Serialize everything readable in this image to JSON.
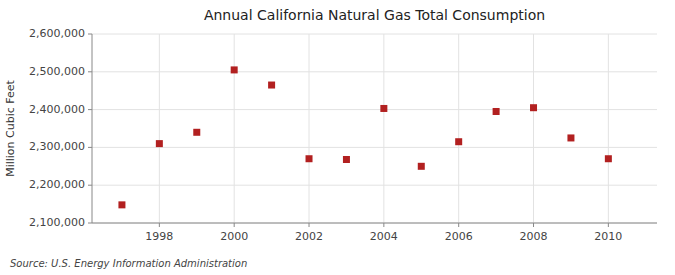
{
  "chart_data": {
    "type": "scatter",
    "title": "Annual California Natural Gas Total Consumption",
    "ylabel": "Million Cubic Feet",
    "annotations": [
      "Source: U.S. Energy Information Administration"
    ],
    "x": [
      1997,
      1998,
      1999,
      2000,
      2001,
      2002,
      2003,
      2004,
      2005,
      2006,
      2007,
      2008,
      2009,
      2010
    ],
    "values": [
      2148000,
      2310000,
      2340000,
      2505000,
      2465000,
      2270000,
      2268000,
      2403000,
      2250000,
      2315000,
      2395000,
      2405000,
      2325000,
      2270000
    ],
    "color": "#b22020",
    "marker": "square",
    "xlim": [
      1996.2,
      2011.3
    ],
    "xticks": [
      1998,
      2000,
      2002,
      2004,
      2006,
      2008,
      2010
    ],
    "ylim": [
      2100000,
      2600000
    ],
    "yticks": [
      {
        "value": 2100000,
        "label": "2,100,000"
      },
      {
        "value": 2200000,
        "label": "2,200,000"
      },
      {
        "value": 2300000,
        "label": "2,300,000"
      },
      {
        "value": 2400000,
        "label": "2,400,000"
      },
      {
        "value": 2500000,
        "label": "2,500,000"
      },
      {
        "value": 2600000,
        "label": "2,600,000"
      }
    ],
    "grid": true
  }
}
